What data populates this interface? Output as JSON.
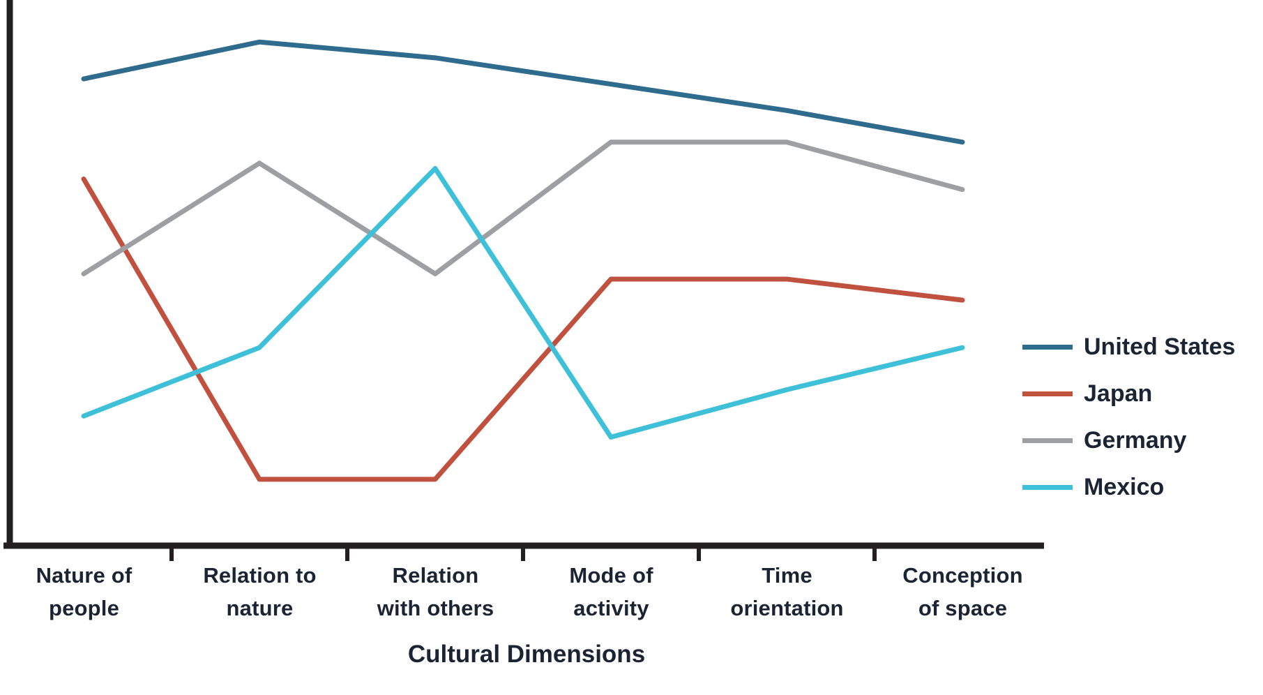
{
  "chart_data": {
    "type": "line",
    "title": "",
    "xlabel": "Cultural Dimensions",
    "ylabel": "",
    "ylim": [
      0,
      10
    ],
    "grid": false,
    "legend_position": "right",
    "categories": [
      "Nature of people",
      "Relation to nature",
      "Relation with others",
      "Mode of activity",
      "Time orientation",
      "Conception of space"
    ],
    "series": [
      {
        "name": "United States",
        "color": "#2e6b8c",
        "values": [
          8.9,
          9.6,
          9.3,
          8.8,
          8.3,
          7.7
        ]
      },
      {
        "name": "Japan",
        "color": "#c0513f",
        "values": [
          7.0,
          1.3,
          1.3,
          5.1,
          5.1,
          4.7
        ]
      },
      {
        "name": "Germany",
        "color": "#9d9fa2",
        "values": [
          5.2,
          7.3,
          5.2,
          7.7,
          7.7,
          6.8
        ]
      },
      {
        "name": "Mexico",
        "color": "#3ec1d8",
        "values": [
          2.5,
          3.8,
          7.2,
          2.1,
          3.0,
          3.8
        ]
      }
    ]
  },
  "axis": {
    "color": "#231f20",
    "text_color": "#1b2433"
  }
}
